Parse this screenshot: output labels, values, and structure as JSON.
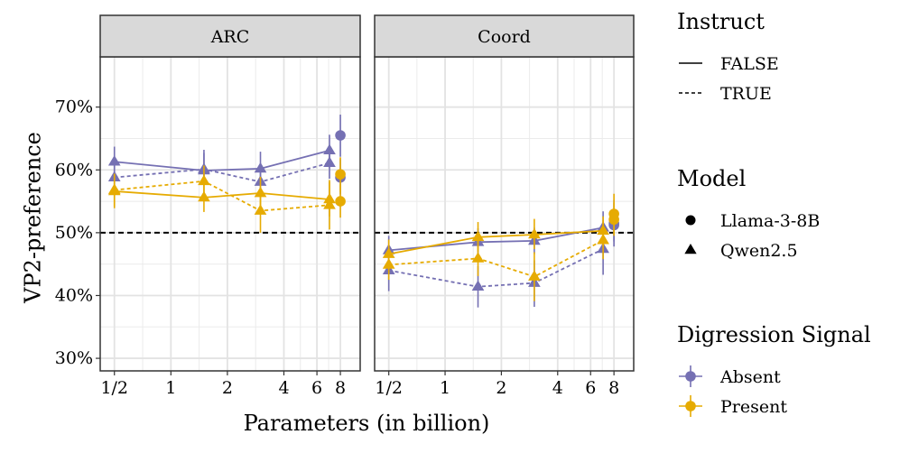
{
  "chart_data": {
    "type": "line",
    "ylabel": "VP2-preference",
    "xlabel": "Parameters (in billion)",
    "x_scale": "log2",
    "xlim": [
      0.42,
      10.2
    ],
    "ylim": [
      28,
      78
    ],
    "x_ticks": [
      {
        "value": 0.5,
        "label": "1/2"
      },
      {
        "value": 1,
        "label": "1"
      },
      {
        "value": 2,
        "label": "2"
      },
      {
        "value": 4,
        "label": "4"
      },
      {
        "value": 6,
        "label": "6"
      },
      {
        "value": 8,
        "label": "8"
      }
    ],
    "y_ticks": [
      {
        "value": 30,
        "label": "30%"
      },
      {
        "value": 40,
        "label": "40%"
      },
      {
        "value": 50,
        "label": "50%"
      },
      {
        "value": 60,
        "label": "60%"
      },
      {
        "value": 70,
        "label": "70%"
      }
    ],
    "reference_line": {
      "y": 50,
      "style": "dashed",
      "color": "#000000"
    },
    "colors": {
      "Absent": "#7570b3",
      "Present": "#e6ab02"
    },
    "legends": [
      {
        "title": "Instruct",
        "kind": "linetype",
        "items": [
          {
            "label": "FALSE",
            "linetype": "solid"
          },
          {
            "label": "TRUE",
            "linetype": "dashed"
          }
        ]
      },
      {
        "title": "Model",
        "kind": "shape",
        "items": [
          {
            "label": "Llama-3-8B",
            "shape": "circle"
          },
          {
            "label": "Qwen2.5",
            "shape": "triangle"
          }
        ]
      },
      {
        "title": "Digression Signal",
        "kind": "color",
        "items": [
          {
            "label": "Absent",
            "color": "#7570b3"
          },
          {
            "label": "Present",
            "color": "#e6ab02"
          }
        ]
      }
    ],
    "panels": [
      {
        "title": "ARC",
        "series": [
          {
            "name": "Qwen2.5 / Absent / FALSE",
            "model": "Qwen2.5",
            "signal": "Absent",
            "instruct": false,
            "points": [
              {
                "x": 0.5,
                "y": 61.3,
                "lo": 59.0,
                "hi": 63.7
              },
              {
                "x": 1.5,
                "y": 59.9,
                "lo": 57.7,
                "hi": 63.2
              },
              {
                "x": 3,
                "y": 60.2,
                "lo": 57.6,
                "hi": 62.9
              },
              {
                "x": 7,
                "y": 63.1,
                "lo": 60.4,
                "hi": 65.6
              }
            ]
          },
          {
            "name": "Qwen2.5 / Absent / TRUE",
            "model": "Qwen2.5",
            "signal": "Absent",
            "instruct": true,
            "points": [
              {
                "x": 0.5,
                "y": 58.8,
                "lo": 56.3,
                "hi": 61.4
              },
              {
                "x": 1.5,
                "y": 60.1,
                "lo": 57.6,
                "hi": 62.7
              },
              {
                "x": 3,
                "y": 58.1,
                "lo": 56.3,
                "hi": 60.2
              },
              {
                "x": 7,
                "y": 61.1,
                "lo": 58.6,
                "hi": 63.9
              }
            ]
          },
          {
            "name": "Qwen2.5 / Present / FALSE",
            "model": "Qwen2.5",
            "signal": "Present",
            "instruct": false,
            "points": [
              {
                "x": 0.5,
                "y": 56.6,
                "lo": 53.9,
                "hi": 59.3
              },
              {
                "x": 1.5,
                "y": 55.6,
                "lo": 53.3,
                "hi": 58.0
              },
              {
                "x": 3,
                "y": 56.3,
                "lo": 53.7,
                "hi": 58.9
              },
              {
                "x": 7,
                "y": 55.3,
                "lo": 52.6,
                "hi": 58.1
              }
            ]
          },
          {
            "name": "Qwen2.5 / Present / TRUE",
            "model": "Qwen2.5",
            "signal": "Present",
            "instruct": true,
            "points": [
              {
                "x": 0.5,
                "y": 56.8,
                "lo": 54.2,
                "hi": 59.4
              },
              {
                "x": 1.5,
                "y": 58.2,
                "lo": 55.7,
                "hi": 60.7
              },
              {
                "x": 3,
                "y": 53.5,
                "lo": 50.0,
                "hi": 56.9
              },
              {
                "x": 7,
                "y": 54.4,
                "lo": 50.5,
                "hi": 58.4
              }
            ]
          },
          {
            "name": "Llama-3-8B / Absent / FALSE",
            "model": "Llama-3-8B",
            "signal": "Absent",
            "instruct": false,
            "points": [
              {
                "x": 8,
                "y": 65.5,
                "lo": 62.1,
                "hi": 68.8
              }
            ]
          },
          {
            "name": "Llama-3-8B / Absent / TRUE",
            "model": "Llama-3-8B",
            "signal": "Absent",
            "instruct": true,
            "points": [
              {
                "x": 8,
                "y": 58.8,
                "lo": 56.1,
                "hi": 61.7
              }
            ]
          },
          {
            "name": "Llama-3-8B / Present / FALSE",
            "model": "Llama-3-8B",
            "signal": "Present",
            "instruct": false,
            "points": [
              {
                "x": 8,
                "y": 55.0,
                "lo": 52.4,
                "hi": 57.7
              }
            ]
          },
          {
            "name": "Llama-3-8B / Present / TRUE",
            "model": "Llama-3-8B",
            "signal": "Present",
            "instruct": true,
            "points": [
              {
                "x": 8,
                "y": 59.3,
                "lo": 56.5,
                "hi": 62.0
              }
            ]
          }
        ]
      },
      {
        "title": "Coord",
        "series": [
          {
            "name": "Qwen2.5 / Absent / FALSE",
            "model": "Qwen2.5",
            "signal": "Absent",
            "instruct": false,
            "points": [
              {
                "x": 0.5,
                "y": 47.2,
                "lo": 45.0,
                "hi": 49.5
              },
              {
                "x": 1.5,
                "y": 48.5,
                "lo": 46.4,
                "hi": 50.7
              },
              {
                "x": 3,
                "y": 48.7,
                "lo": 46.6,
                "hi": 50.8
              },
              {
                "x": 7,
                "y": 50.8,
                "lo": 48.3,
                "hi": 53.4
              }
            ]
          },
          {
            "name": "Qwen2.5 / Absent / TRUE",
            "model": "Qwen2.5",
            "signal": "Absent",
            "instruct": true,
            "points": [
              {
                "x": 0.5,
                "y": 44.0,
                "lo": 40.7,
                "hi": 47.3
              },
              {
                "x": 1.5,
                "y": 41.4,
                "lo": 38.1,
                "hi": 44.7
              },
              {
                "x": 3,
                "y": 42.0,
                "lo": 38.2,
                "hi": 45.6
              },
              {
                "x": 7,
                "y": 47.4,
                "lo": 43.3,
                "hi": 51.5
              }
            ]
          },
          {
            "name": "Qwen2.5 / Present / FALSE",
            "model": "Qwen2.5",
            "signal": "Present",
            "instruct": false,
            "points": [
              {
                "x": 0.5,
                "y": 46.6,
                "lo": 44.4,
                "hi": 48.9
              },
              {
                "x": 1.5,
                "y": 49.3,
                "lo": 47.0,
                "hi": 51.7
              },
              {
                "x": 3,
                "y": 49.7,
                "lo": 47.4,
                "hi": 52.2
              },
              {
                "x": 7,
                "y": 50.3,
                "lo": 47.9,
                "hi": 52.6
              }
            ]
          },
          {
            "name": "Qwen2.5 / Present / TRUE",
            "model": "Qwen2.5",
            "signal": "Present",
            "instruct": true,
            "points": [
              {
                "x": 0.5,
                "y": 44.9,
                "lo": 42.5,
                "hi": 47.3
              },
              {
                "x": 1.5,
                "y": 45.9,
                "lo": 43.1,
                "hi": 48.8
              },
              {
                "x": 3,
                "y": 43.0,
                "lo": 39.1,
                "hi": 46.9
              },
              {
                "x": 7,
                "y": 48.8,
                "lo": 45.8,
                "hi": 52.0
              }
            ]
          },
          {
            "name": "Llama-3-8B / Absent / FALSE",
            "model": "Llama-3-8B",
            "signal": "Absent",
            "instruct": false,
            "points": [
              {
                "x": 8,
                "y": 51.2,
                "lo": 48.6,
                "hi": 53.7
              }
            ]
          },
          {
            "name": "Llama-3-8B / Absent / TRUE",
            "model": "Llama-3-8B",
            "signal": "Absent",
            "instruct": true,
            "points": [
              {
                "x": 8,
                "y": 51.5,
                "lo": 47.8,
                "hi": 55.2
              }
            ]
          },
          {
            "name": "Llama-3-8B / Present / FALSE",
            "model": "Llama-3-8B",
            "signal": "Present",
            "instruct": false,
            "points": [
              {
                "x": 8,
                "y": 52.1,
                "lo": 49.5,
                "hi": 54.8
              }
            ]
          },
          {
            "name": "Llama-3-8B / Present / TRUE",
            "model": "Llama-3-8B",
            "signal": "Present",
            "instruct": true,
            "points": [
              {
                "x": 8,
                "y": 53.0,
                "lo": 49.8,
                "hi": 56.2
              }
            ]
          }
        ]
      }
    ]
  }
}
